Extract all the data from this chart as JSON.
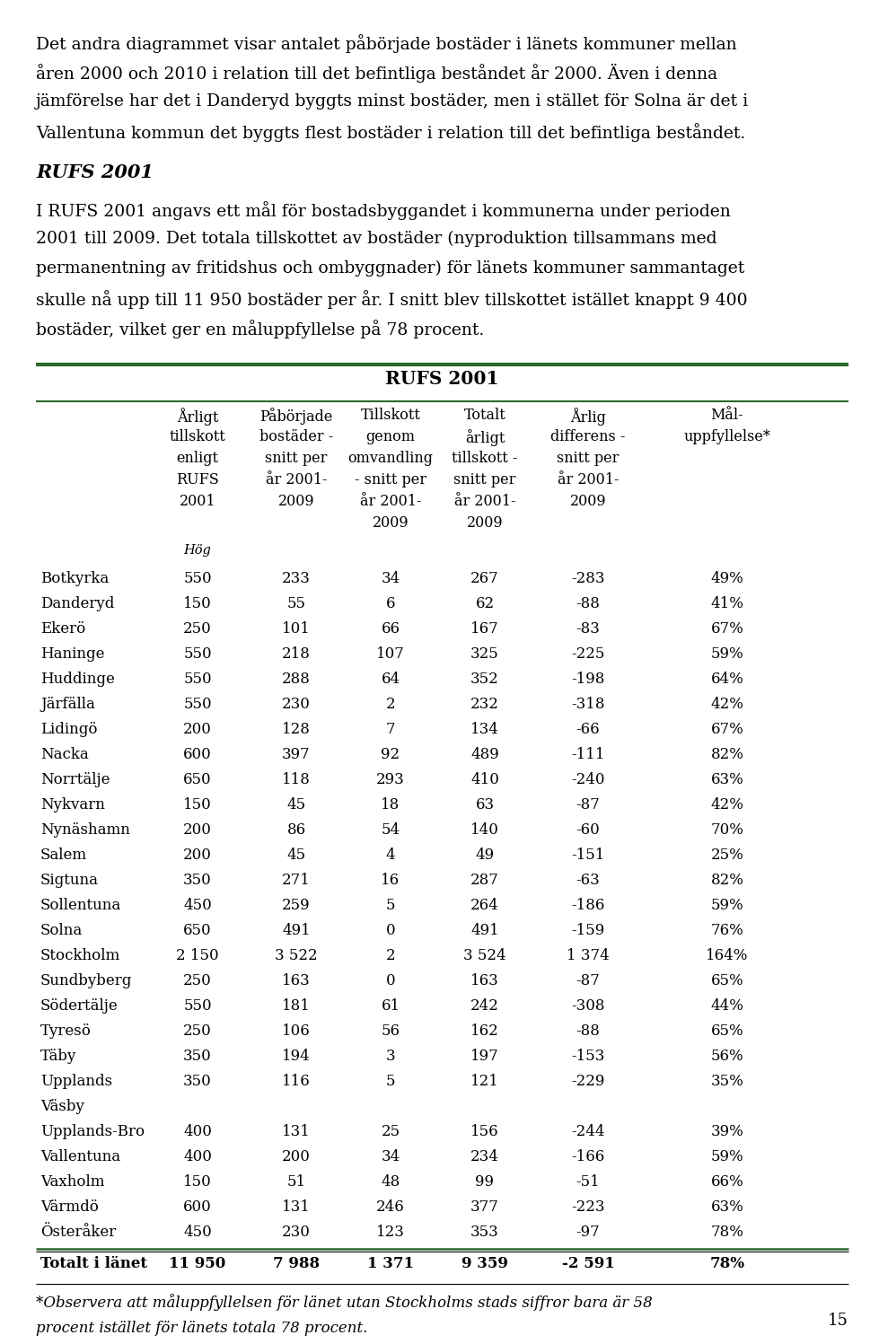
{
  "intro_text_lines": [
    "Det andra diagrammet visar antalet påbörjade bostäder i länets kommuner mellan",
    "åren 2000 och 2010 i relation till det befintliga beståndet år 2000. Även i denna",
    "jämförelse har det i Danderyd byggts minst bostäder, men i stället för Solna är det i",
    "Vallentuna kommun det byggts flest bostäder i relation till det befintliga beståndet."
  ],
  "section_title": "RUFS 2001",
  "section_body_lines": [
    "I RUFS 2001 angavs ett mål för bostadsbyggandet i kommunerna under perioden",
    "2001 till 2009. Det totala tillskottet av bostäder (nyproduktion tillsammans med",
    "permanentning av fritidshus och ombyggnader) för länets kommuner sammantaget",
    "skulle nå upp till 11 950 bostäder per år. I snitt blev tillskottet istället knappt 9 400",
    "bostäder, vilket ger en måluppfyllelse på 78 procent."
  ],
  "table_title": "RUFS 2001",
  "col_headers": [
    [
      "Årligt",
      "tillskott",
      "enligt",
      "RUFS",
      "2001"
    ],
    [
      "Påbörjade",
      "bostäder -",
      "snitt per",
      "år 2001-",
      "2009"
    ],
    [
      "Tillskott",
      "genom",
      "omvandling",
      "- snitt per",
      "år 2001-",
      "2009"
    ],
    [
      "Totalt",
      "årligt",
      "tillskott -",
      "snitt per",
      "år 2001-",
      "2009"
    ],
    [
      "Årlig",
      "differens -",
      "snitt per",
      "år 2001-",
      "2009"
    ],
    [
      "Mål-",
      "uppfyllelse*"
    ]
  ],
  "sub_header": "Hög",
  "rows": [
    [
      "Botkyrka",
      "550",
      "233",
      "34",
      "267",
      "-283",
      "49%"
    ],
    [
      "Danderyd",
      "150",
      "55",
      "6",
      "62",
      "-88",
      "41%"
    ],
    [
      "Ekerö",
      "250",
      "101",
      "66",
      "167",
      "-83",
      "67%"
    ],
    [
      "Haninge",
      "550",
      "218",
      "107",
      "325",
      "-225",
      "59%"
    ],
    [
      "Huddinge",
      "550",
      "288",
      "64",
      "352",
      "-198",
      "64%"
    ],
    [
      "Järfälla",
      "550",
      "230",
      "2",
      "232",
      "-318",
      "42%"
    ],
    [
      "Lidingö",
      "200",
      "128",
      "7",
      "134",
      "-66",
      "67%"
    ],
    [
      "Nacka",
      "600",
      "397",
      "92",
      "489",
      "-111",
      "82%"
    ],
    [
      "Norrtälje",
      "650",
      "118",
      "293",
      "410",
      "-240",
      "63%"
    ],
    [
      "Nykvarn",
      "150",
      "45",
      "18",
      "63",
      "-87",
      "42%"
    ],
    [
      "Nynäshamn",
      "200",
      "86",
      "54",
      "140",
      "-60",
      "70%"
    ],
    [
      "Salem",
      "200",
      "45",
      "4",
      "49",
      "-151",
      "25%"
    ],
    [
      "Sigtuna",
      "350",
      "271",
      "16",
      "287",
      "-63",
      "82%"
    ],
    [
      "Sollentuna",
      "450",
      "259",
      "5",
      "264",
      "-186",
      "59%"
    ],
    [
      "Solna",
      "650",
      "491",
      "0",
      "491",
      "-159",
      "76%"
    ],
    [
      "Stockholm",
      "2 150",
      "3 522",
      "2",
      "3 524",
      "1 374",
      "164%"
    ],
    [
      "Sundbyberg",
      "250",
      "163",
      "0",
      "163",
      "-87",
      "65%"
    ],
    [
      "Södertälje",
      "550",
      "181",
      "61",
      "242",
      "-308",
      "44%"
    ],
    [
      "Tyresö",
      "250",
      "106",
      "56",
      "162",
      "-88",
      "65%"
    ],
    [
      "Täby",
      "350",
      "194",
      "3",
      "197",
      "-153",
      "56%"
    ],
    [
      "Upplands",
      "350",
      "116",
      "5",
      "121",
      "-229",
      "35%"
    ],
    [
      "Upplands-Bro",
      "400",
      "131",
      "25",
      "156",
      "-244",
      "39%"
    ],
    [
      "Vallentuna",
      "400",
      "200",
      "34",
      "234",
      "-166",
      "59%"
    ],
    [
      "Vaxholm",
      "150",
      "51",
      "48",
      "99",
      "-51",
      "66%"
    ],
    [
      "Värmdö",
      "600",
      "131",
      "246",
      "377",
      "-223",
      "63%"
    ],
    [
      "Österåker",
      "450",
      "230",
      "123",
      "353",
      "-97",
      "78%"
    ]
  ],
  "upplands_vasby_extra": "Väsby",
  "total_row": [
    "Totalt i länet",
    "11 950",
    "7 988",
    "1 371",
    "9 359",
    "-2 591",
    "78%"
  ],
  "footnote_lines": [
    "*Observera att måluppfyllelsen för länet utan Stockholms stads siffror bara är 58",
    "procent istället för länets totala 78 procent."
  ],
  "page_number": "15",
  "green_color": "#2d6a2d",
  "text_color": "#000000",
  "bg_color": "#ffffff"
}
